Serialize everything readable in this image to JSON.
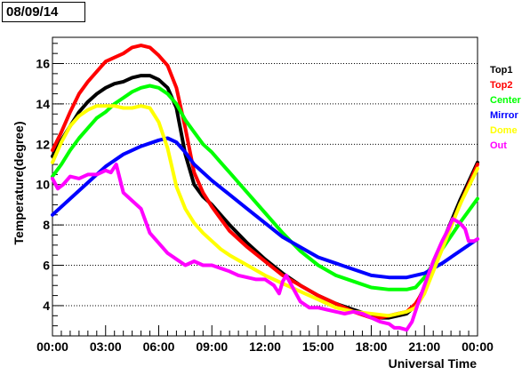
{
  "chart_data": {
    "type": "line",
    "title": "08/09/14",
    "xlabel": "Universal Time",
    "ylabel": "Temperature(degree)",
    "xlim": [
      0,
      24
    ],
    "ylim": [
      2.5,
      17.3
    ],
    "x_ticks": [
      0,
      3,
      6,
      9,
      12,
      15,
      18,
      21,
      24
    ],
    "x_tick_labels": [
      "00:00",
      "03:00",
      "06:00",
      "09:00",
      "12:00",
      "15:00",
      "18:00",
      "21:00",
      "00:00"
    ],
    "y_ticks": [
      4,
      6,
      8,
      10,
      12,
      14,
      16
    ],
    "y_tick_labels": [
      "4",
      "6",
      "8",
      "10",
      "12",
      "14",
      "16"
    ],
    "grid": "horizontal dotted",
    "legend_position": "right",
    "series": [
      {
        "name": "Top1",
        "color": "#000000",
        "x": [
          0,
          0.5,
          1,
          1.5,
          2,
          2.5,
          3,
          3.5,
          4,
          4.5,
          5,
          5.5,
          6,
          6.5,
          7,
          7.5,
          8,
          8.5,
          9,
          9.5,
          10,
          11,
          12,
          13,
          14,
          15,
          16,
          17,
          18,
          18.5,
          19,
          19.5,
          20,
          20.5,
          21,
          22,
          23,
          24
        ],
        "y": [
          11.4,
          12.2,
          12.9,
          13.6,
          14.1,
          14.5,
          14.8,
          15.0,
          15.1,
          15.3,
          15.4,
          15.4,
          15.2,
          14.8,
          13.8,
          11.5,
          10.0,
          9.4,
          9.0,
          8.5,
          8.0,
          7.1,
          6.3,
          5.6,
          5.0,
          4.5,
          4.1,
          3.8,
          3.5,
          3.4,
          3.4,
          3.5,
          3.6,
          4.0,
          4.9,
          7.1,
          9.2,
          11.1
        ]
      },
      {
        "name": "Top2",
        "color": "#ff0000",
        "x": [
          0,
          0.5,
          1,
          1.5,
          2,
          2.5,
          3,
          3.5,
          4,
          4.5,
          5,
          5.5,
          6,
          6.5,
          7,
          7.5,
          8,
          8.5,
          9,
          9.5,
          10,
          11,
          12,
          13,
          14,
          15,
          16,
          17,
          18,
          18.5,
          19,
          19.5,
          20,
          20.5,
          21,
          22,
          23,
          24
        ],
        "y": [
          11.7,
          12.6,
          13.6,
          14.5,
          15.1,
          15.6,
          16.1,
          16.3,
          16.5,
          16.8,
          16.9,
          16.8,
          16.4,
          15.9,
          14.8,
          12.8,
          10.6,
          9.6,
          8.9,
          8.3,
          7.7,
          6.9,
          6.2,
          5.5,
          5.0,
          4.5,
          4.1,
          3.7,
          3.4,
          3.4,
          3.5,
          3.6,
          3.7,
          4.1,
          4.8,
          6.9,
          9.0,
          11.0
        ]
      },
      {
        "name": "Center",
        "color": "#00ff00",
        "x": [
          0,
          0.5,
          1,
          1.5,
          2,
          2.5,
          3,
          3.5,
          4,
          4.5,
          5,
          5.5,
          6,
          6.5,
          7,
          7.5,
          8,
          8.5,
          9,
          9.5,
          10,
          11,
          12,
          13,
          14,
          15,
          16,
          17,
          18,
          19,
          20,
          20.5,
          21,
          22,
          23,
          24
        ],
        "y": [
          10.4,
          11.0,
          11.7,
          12.3,
          12.8,
          13.3,
          13.6,
          14.0,
          14.3,
          14.6,
          14.8,
          14.9,
          14.8,
          14.5,
          14.0,
          13.2,
          12.6,
          12.0,
          11.6,
          11.1,
          10.6,
          9.6,
          8.6,
          7.6,
          6.7,
          6.0,
          5.5,
          5.2,
          4.9,
          4.8,
          4.8,
          4.9,
          5.4,
          6.8,
          8.1,
          9.3
        ]
      },
      {
        "name": "Mirror",
        "color": "#0000ff",
        "x": [
          0,
          1,
          2,
          3,
          4,
          5,
          6,
          6.5,
          7,
          7.5,
          8,
          9,
          10,
          11,
          12,
          13,
          14,
          15,
          16,
          17,
          18,
          19,
          20,
          21,
          22,
          23,
          24
        ],
        "y": [
          8.5,
          9.3,
          10.1,
          10.9,
          11.5,
          11.9,
          12.2,
          12.3,
          12.1,
          11.6,
          11.0,
          10.2,
          9.5,
          8.8,
          8.1,
          7.4,
          6.9,
          6.4,
          6.1,
          5.8,
          5.5,
          5.4,
          5.4,
          5.6,
          6.1,
          6.7,
          7.3
        ]
      },
      {
        "name": "Dome",
        "color": "#ffff00",
        "x": [
          0,
          0.5,
          1,
          1.5,
          2,
          2.5,
          3,
          3.5,
          4,
          4.5,
          5,
          5.5,
          6,
          6.5,
          7,
          7.5,
          8,
          8.5,
          9,
          9.5,
          10,
          11,
          12,
          13,
          14,
          15,
          16,
          17,
          18,
          19,
          20,
          20.5,
          21,
          22,
          23,
          24
        ],
        "y": [
          11.1,
          12.1,
          12.9,
          13.4,
          13.7,
          13.9,
          13.9,
          13.9,
          13.8,
          13.8,
          13.9,
          13.8,
          13.1,
          11.8,
          9.9,
          8.8,
          8.1,
          7.6,
          7.2,
          6.8,
          6.5,
          6.0,
          5.5,
          5.1,
          4.7,
          4.3,
          3.9,
          3.7,
          3.6,
          3.5,
          3.7,
          3.9,
          4.6,
          6.8,
          9.0,
          10.8
        ]
      },
      {
        "name": "Out",
        "color": "#ff00ff",
        "x": [
          0,
          0.3,
          0.6,
          1,
          1.5,
          2,
          2.5,
          3,
          3.3,
          3.6,
          4,
          4.5,
          5,
          5.5,
          6,
          6.5,
          7,
          7.5,
          8,
          8.5,
          9,
          10,
          10.5,
          11,
          11.5,
          12,
          12.5,
          12.8,
          13,
          13.2,
          13.5,
          14,
          14.5,
          15,
          15.5,
          16,
          16.5,
          17,
          17.5,
          18,
          18.5,
          19,
          19.3,
          19.6,
          20,
          20.3,
          20.6,
          21,
          21.5,
          22,
          22.3,
          22.6,
          23,
          23.3,
          23.5,
          23.8,
          24
        ],
        "y": [
          10.3,
          9.8,
          10.0,
          10.4,
          10.3,
          10.5,
          10.5,
          10.7,
          10.6,
          11.0,
          9.6,
          9.2,
          8.8,
          7.6,
          7.1,
          6.6,
          6.3,
          6.0,
          6.2,
          6.0,
          6.0,
          5.7,
          5.5,
          5.4,
          5.3,
          5.3,
          5.0,
          4.6,
          5.2,
          5.5,
          5.0,
          4.2,
          3.9,
          3.9,
          3.8,
          3.7,
          3.6,
          3.7,
          3.6,
          3.4,
          3.2,
          3.1,
          2.9,
          2.9,
          2.8,
          3.2,
          4.0,
          5.0,
          6.2,
          7.2,
          7.7,
          8.3,
          8.1,
          7.8,
          7.2,
          7.2,
          7.3
        ]
      }
    ]
  }
}
